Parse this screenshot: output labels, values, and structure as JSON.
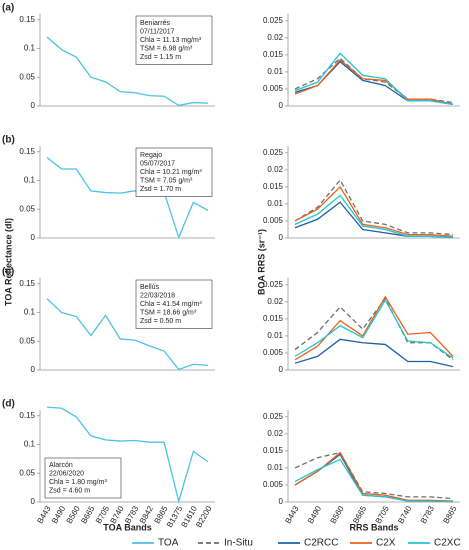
{
  "chart_data": [
    {
      "type": "line",
      "panel": "(a)",
      "y_label": "TOA Reflectance (dl)",
      "annotation": [
        "Beniarrés",
        "07/11/2017",
        "Chla = 11.13 mg/m³",
        "TSM = 6.98 g/m³",
        "Zsd = 1.15 m"
      ],
      "annotation_position": "upper right",
      "ylim": [
        0,
        0.16
      ],
      "yticks": [
        0,
        0.05,
        0.1,
        0.15
      ],
      "series": [
        {
          "name": "TOA",
          "color": "#4cc3e3",
          "values": [
            0.12,
            0.098,
            0.085,
            0.05,
            0.042,
            0.025,
            0.023,
            0.018,
            0.017,
            0.001,
            0.006,
            0.005
          ]
        }
      ]
    },
    {
      "type": "line",
      "y_label": "BOA RRS (sr⁻¹)",
      "ylim": [
        0,
        0.027
      ],
      "yticks": [
        0,
        0.005,
        0.01,
        0.015,
        0.02,
        0.025
      ],
      "series": [
        {
          "name": "In-Situ",
          "color": "#6d6d6d",
          "line_style": "dashed",
          "values": [
            0.005,
            0.008,
            0.014,
            0.008,
            0.007,
            0.002,
            0.002,
            0.001
          ]
        },
        {
          "name": "C2RCC",
          "color": "#1c5fa8",
          "values": [
            0.004,
            0.006,
            0.013,
            0.0075,
            0.006,
            0.0015,
            0.0015,
            0.0005
          ]
        },
        {
          "name": "C2X",
          "color": "#e8601c",
          "values": [
            0.0035,
            0.006,
            0.0135,
            0.008,
            0.0075,
            0.002,
            0.002,
            0.0005
          ]
        },
        {
          "name": "C2XC",
          "color": "#22c4d0",
          "values": [
            0.0045,
            0.007,
            0.0155,
            0.009,
            0.008,
            0.0015,
            0.0015,
            0.0005
          ]
        }
      ]
    },
    {
      "type": "line",
      "panel": "(b)",
      "annotation": [
        "Regajo",
        "05/07/2017",
        "Chla = 10.21 mg/m³",
        "TSM = 7.05 g/m³",
        "Zsd = 1.70 m"
      ],
      "annotation_position": "upper right",
      "ylim": [
        0,
        0.16
      ],
      "yticks": [
        0,
        0.05,
        0.1,
        0.15
      ],
      "series": [
        {
          "color": "#4cc3e3",
          "values": [
            0.14,
            0.12,
            0.12,
            0.082,
            0.079,
            0.078,
            0.082,
            0.073,
            0.08,
            0.001,
            0.062,
            0.048
          ]
        }
      ]
    },
    {
      "type": "line",
      "ylim": [
        0,
        0.027
      ],
      "yticks": [
        0,
        0.005,
        0.01,
        0.015,
        0.02,
        0.025
      ],
      "series": [
        {
          "color": "#6d6d6d",
          "line_style": "dashed",
          "values": [
            0.005,
            0.009,
            0.017,
            0.005,
            0.004,
            0.0015,
            0.0015,
            0.001
          ]
        },
        {
          "color": "#1c5fa8",
          "values": [
            0.003,
            0.0055,
            0.0105,
            0.0025,
            0.0015,
            0.0005,
            0.0005,
            0.0002
          ]
        },
        {
          "color": "#e8601c",
          "values": [
            0.005,
            0.0085,
            0.015,
            0.004,
            0.003,
            0.001,
            0.001,
            0.0005
          ]
        },
        {
          "color": "#22c4d0",
          "values": [
            0.004,
            0.007,
            0.0125,
            0.0035,
            0.0025,
            0.0005,
            0.0005,
            0.0002
          ]
        }
      ]
    },
    {
      "type": "line",
      "panel": "(c)",
      "annotation": [
        "Bellús",
        "22/03/2018",
        "Chla = 41.54 mg/m³",
        "TSM = 18.66 g/m³",
        "Zsd = 0.50 m"
      ],
      "annotation_position": "upper right",
      "ylim": [
        0,
        0.16
      ],
      "yticks": [
        0,
        0.05,
        0.1,
        0.15
      ],
      "series": [
        {
          "color": "#4cc3e3",
          "values": [
            0.124,
            0.1,
            0.093,
            0.06,
            0.095,
            0.054,
            0.052,
            0.042,
            0.033,
            0.001,
            0.01,
            0.008
          ]
        }
      ]
    },
    {
      "type": "line",
      "ylim": [
        0,
        0.027
      ],
      "yticks": [
        0,
        0.005,
        0.01,
        0.015,
        0.02,
        0.025
      ],
      "series": [
        {
          "color": "#6d6d6d",
          "line_style": "dashed",
          "values": [
            0.006,
            0.011,
            0.0185,
            0.012,
            0.021,
            0.008,
            0.008,
            0.003
          ]
        },
        {
          "color": "#1c5fa8",
          "values": [
            0.002,
            0.004,
            0.009,
            0.008,
            0.0075,
            0.0025,
            0.0025,
            0.001
          ]
        },
        {
          "color": "#e8601c",
          "values": [
            0.003,
            0.007,
            0.0145,
            0.01,
            0.0215,
            0.0105,
            0.011,
            0.004
          ]
        },
        {
          "color": "#22c4d0",
          "values": [
            0.004,
            0.008,
            0.013,
            0.0095,
            0.0205,
            0.0085,
            0.008,
            0.0035
          ]
        }
      ]
    },
    {
      "type": "line",
      "panel": "(d)",
      "x_label": "TOA Bands",
      "annotation": [
        "Alarcón",
        "22/06/2020",
        "Chla = 1.80 mg/m³",
        "Zsd = 4.60 m"
      ],
      "annotation_position": "lower left",
      "categories": [
        "B443",
        "B490",
        "B560",
        "B665",
        "B705",
        "B740",
        "B783",
        "B842",
        "B865",
        "B1375",
        "B1610",
        "B2200"
      ],
      "ylim": [
        0,
        0.16
      ],
      "yticks": [
        0,
        0.05,
        0.1,
        0.15
      ],
      "series": [
        {
          "color": "#4cc3e3",
          "values": [
            0.165,
            0.163,
            0.148,
            0.115,
            0.108,
            0.106,
            0.107,
            0.104,
            0.104,
            0.001,
            0.088,
            0.07
          ]
        }
      ]
    },
    {
      "type": "line",
      "x_label": "RRS Bands",
      "categories": [
        "B443",
        "B490",
        "B560",
        "B665",
        "B705",
        "B740",
        "B783",
        "B865"
      ],
      "ylim": [
        0,
        0.027
      ],
      "yticks": [
        0,
        0.005,
        0.01,
        0.015,
        0.02,
        0.025
      ],
      "series": [
        {
          "color": "#6d6d6d",
          "line_style": "dashed",
          "values": [
            0.01,
            0.013,
            0.0145,
            0.003,
            0.0025,
            0.0015,
            0.0015,
            0.001
          ]
        },
        {
          "color": "#1c5fa8",
          "values": [
            0.005,
            0.009,
            0.014,
            0.002,
            0.0015,
            0.0003,
            0.0003,
            0.0001
          ]
        },
        {
          "color": "#e8601c",
          "values": [
            0.005,
            0.009,
            0.0145,
            0.0025,
            0.002,
            0.0005,
            0.0005,
            0.0003
          ]
        },
        {
          "color": "#22c4d0",
          "values": [
            0.006,
            0.0095,
            0.0125,
            0.002,
            0.0015,
            0.0003,
            0.0003,
            0.0001
          ]
        }
      ]
    }
  ]
}
